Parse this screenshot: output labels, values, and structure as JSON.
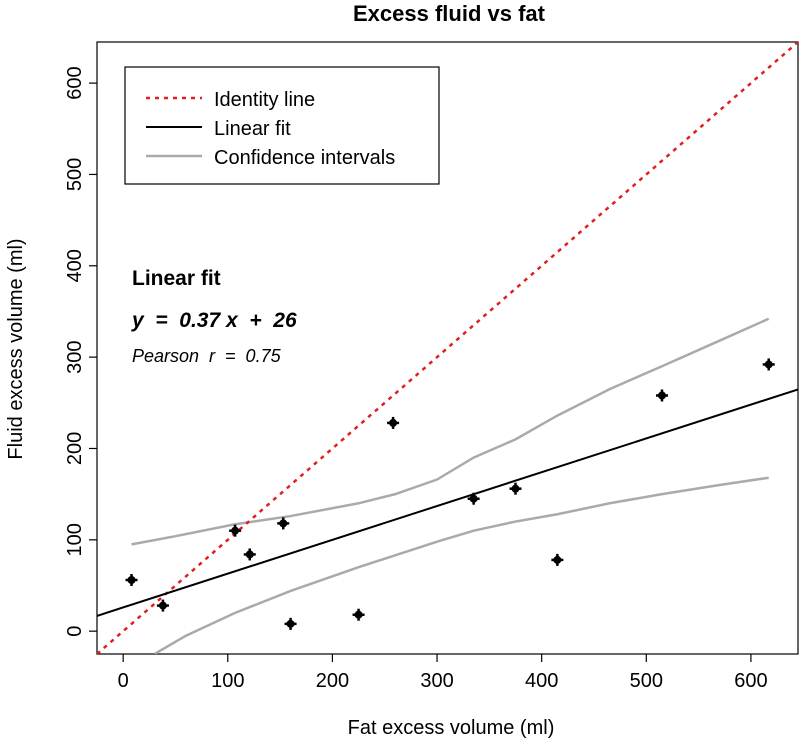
{
  "chart_data": {
    "type": "scatter",
    "title": "Excess fluid vs fat",
    "xlabel": "Fat excess volume (ml)",
    "ylabel": "Fluid excess volume (ml)",
    "xlim": [
      -25,
      645
    ],
    "ylim": [
      -25,
      645
    ],
    "xticks": [
      0,
      100,
      200,
      300,
      400,
      500,
      600
    ],
    "yticks": [
      0,
      100,
      200,
      300,
      400,
      500,
      600
    ],
    "points": [
      {
        "x": 8,
        "y": 56
      },
      {
        "x": 38,
        "y": 28
      },
      {
        "x": 107,
        "y": 110
      },
      {
        "x": 121,
        "y": 84
      },
      {
        "x": 153,
        "y": 118
      },
      {
        "x": 160,
        "y": 8
      },
      {
        "x": 225,
        "y": 18
      },
      {
        "x": 258,
        "y": 228
      },
      {
        "x": 335,
        "y": 145
      },
      {
        "x": 375,
        "y": 156
      },
      {
        "x": 415,
        "y": 78
      },
      {
        "x": 515,
        "y": 258
      },
      {
        "x": 617,
        "y": 292
      }
    ],
    "series": [
      {
        "name": "Identity line",
        "color": "#e02020",
        "style": "dotted",
        "x": [
          -25,
          645
        ],
        "y": [
          -25,
          645
        ]
      },
      {
        "name": "Linear fit",
        "color": "#000000",
        "style": "solid",
        "x": [
          -25,
          645
        ],
        "y": [
          16.75,
          264.65
        ]
      },
      {
        "name": "Confidence intervals",
        "color": "#aaaaaa",
        "style": "solid",
        "upper": {
          "x": [
            8,
            50,
            107,
            160,
            225,
            260,
            300,
            335,
            375,
            415,
            465,
            515,
            570,
            617
          ],
          "y": [
            95,
            104,
            117,
            126,
            140,
            150,
            166,
            190,
            210,
            236,
            265,
            290,
            318,
            342
          ]
        },
        "lower": {
          "x": [
            30,
            60,
            107,
            160,
            225,
            300,
            335,
            375,
            415,
            465,
            515,
            570,
            617
          ],
          "y": [
            -25,
            -5,
            20,
            44,
            70,
            98,
            110,
            120,
            128,
            140,
            150,
            160,
            168
          ]
        }
      }
    ],
    "legend": {
      "position": "top-left",
      "entries": [
        "Identity line",
        "Linear fit",
        "Confidence intervals"
      ]
    },
    "annotation": {
      "title": "Linear fit",
      "equation": "y  =  0.37 x  +  26",
      "pearson": "Pearson  r  =  0.75"
    }
  },
  "colors": {
    "identity": "#e02020",
    "fit": "#000000",
    "ci": "#aaaaaa",
    "points": "#000000"
  }
}
